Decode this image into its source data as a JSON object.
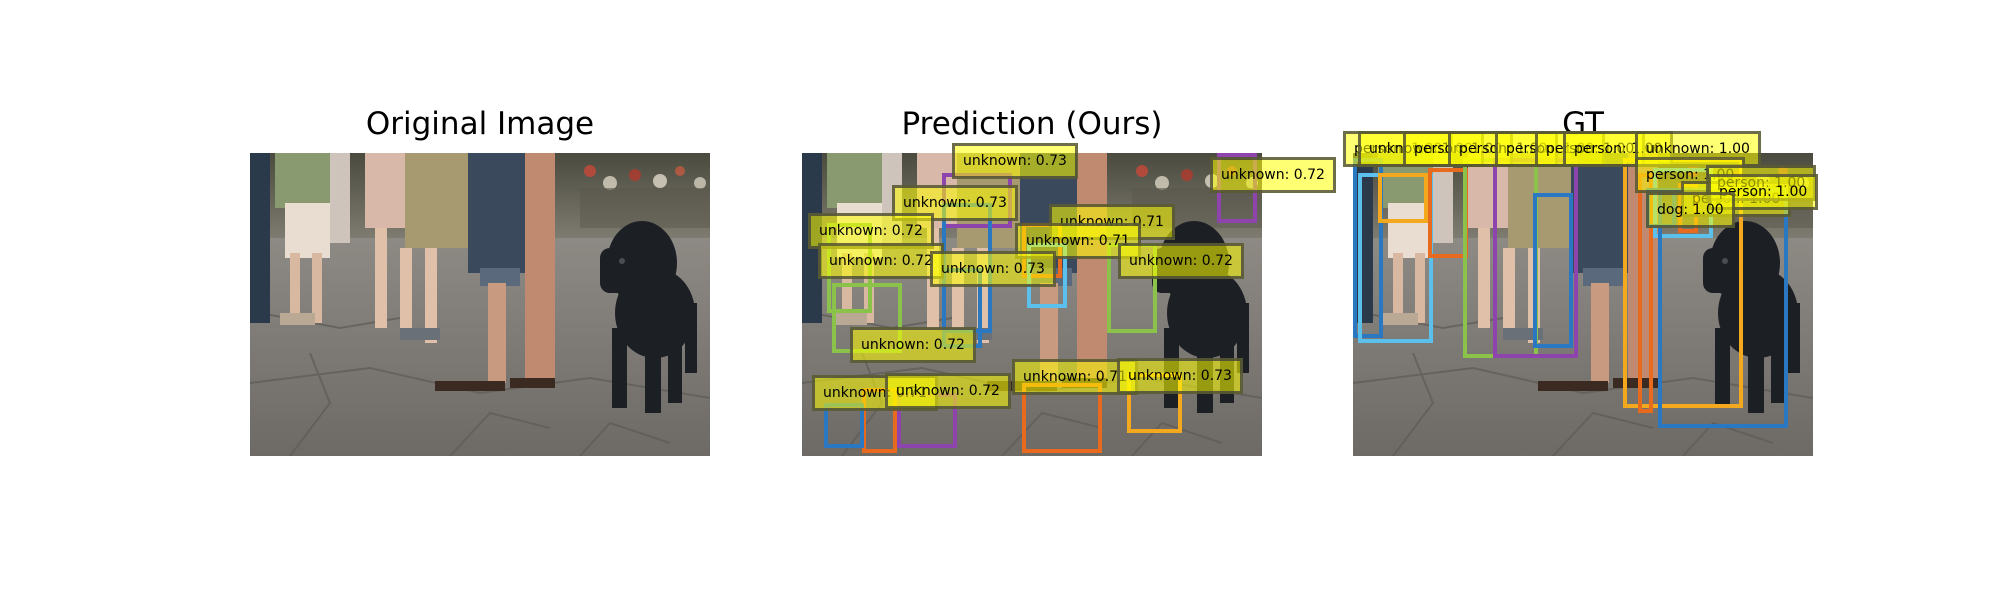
{
  "panels": [
    {
      "title": "Original Image",
      "detections": []
    },
    {
      "title": "Prediction (Ours)",
      "detections": [
        {
          "label": "unknown: 0.72",
          "color": "#8e44ad"
        },
        {
          "label": "unknown: 0.73",
          "color": "#8e44ad"
        },
        {
          "label": "unknown: 0.73",
          "color": "#2b78c2"
        },
        {
          "label": "unknown: 0.72",
          "color": "#8bc34a"
        },
        {
          "label": "unknown: 0.71",
          "color": "#e86a1e"
        },
        {
          "label": "unknown: 0.71",
          "color": "#5bc0eb"
        },
        {
          "label": "unknown: 0.72",
          "color": "#8bc34a"
        },
        {
          "label": "unknown: 0.72",
          "color": "#8bc34a"
        },
        {
          "label": "unknown: 0.73",
          "color": "#2b78c2"
        },
        {
          "label": "unknown: 0.72",
          "color": "#e86a1e"
        },
        {
          "label": "unknown: 0.71",
          "color": "#2b78c2"
        },
        {
          "label": "unknown: 0.72",
          "color": "#8e44ad"
        },
        {
          "label": "unknown: 0.71",
          "color": "#e86a1e"
        },
        {
          "label": "unknown: 0.73",
          "color": "#f4a81d"
        }
      ]
    },
    {
      "title": "GT",
      "detections": [
        {
          "label": "person: 1.00",
          "color": "#2b78c2"
        },
        {
          "label": "unknown: 1.00",
          "color": "#5bc0eb"
        },
        {
          "label": "person: 1.00",
          "color": "#f4a81d"
        },
        {
          "label": "person: 1.00",
          "color": "#e86a1e"
        },
        {
          "label": "person: 1.00",
          "color": "#8bc34a"
        },
        {
          "label": "person: 1.00",
          "color": "#8e44ad"
        },
        {
          "label": "person: 1.00",
          "color": "#2b78c2"
        },
        {
          "label": "unknown: 1.00",
          "color": "#f4a81d"
        },
        {
          "label": "person: 1.00",
          "color": "#e86a1e"
        },
        {
          "label": "person: 1.00",
          "color": "#5bc0eb"
        },
        {
          "label": "person: 1.00",
          "color": "#e86a1e"
        },
        {
          "label": "person: 1.00",
          "color": "#2b78c2"
        },
        {
          "label": "dog: 1.00",
          "color": "#2b78c2"
        }
      ]
    }
  ]
}
